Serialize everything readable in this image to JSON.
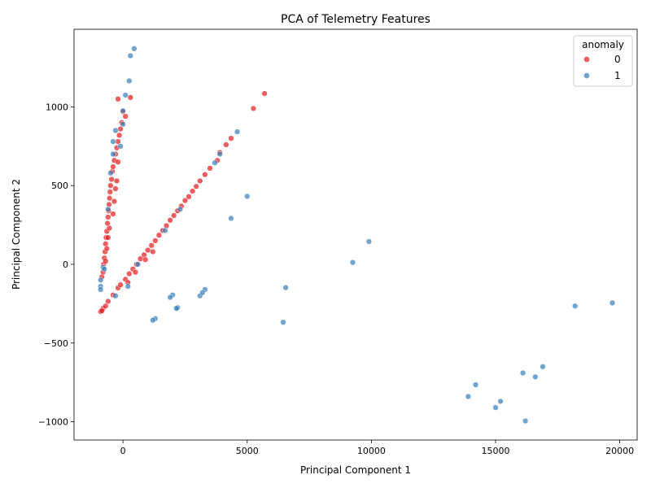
{
  "chart_data": {
    "type": "scatter",
    "title": "PCA of Telemetry Features",
    "x_label": "Principal Component 1",
    "y_label": "Principal Component 2",
    "legend_title": "anomaly",
    "legend_position": "upper right",
    "xlim": [
      -1970,
      20700
    ],
    "ylim": [
      -1116,
      1493
    ],
    "xticks": [
      0,
      5000,
      10000,
      15000,
      20000
    ],
    "yticks": [
      {
        "value": -1000,
        "label": "−1000"
      },
      {
        "value": -500,
        "label": "−500"
      },
      0,
      500,
      1000
    ],
    "series": [
      {
        "name": "0",
        "color": "#e41a1c",
        "x": [
          -800,
          -600,
          -400,
          -200,
          -100,
          100,
          250,
          400,
          550,
          700,
          850,
          1000,
          1150,
          1300,
          1450,
          1600,
          1750,
          1900,
          2050,
          2200,
          2350,
          2500,
          2650,
          2800,
          2950,
          3100,
          3300,
          3500,
          3800,
          3900,
          4150,
          4350,
          5250,
          5700,
          1200,
          900,
          500,
          200,
          -850,
          -800,
          -780,
          -750,
          -720,
          -700,
          -680,
          -650,
          -620,
          -600,
          -580,
          -560,
          -540,
          -520,
          -500,
          -460,
          -430,
          -400,
          -350,
          -300,
          -250,
          -200,
          -150,
          -100,
          -50,
          0,
          100,
          -200,
          300,
          -400,
          -350,
          -300,
          -250,
          -200,
          -700,
          -650,
          -600,
          -550,
          -900,
          -850,
          -700
        ],
        "values": [
          -280,
          -235,
          -195,
          -150,
          -130,
          -95,
          -60,
          -30,
          0,
          35,
          60,
          90,
          120,
          150,
          185,
          215,
          245,
          280,
          310,
          340,
          370,
          405,
          430,
          465,
          495,
          530,
          570,
          610,
          660,
          710,
          760,
          800,
          990,
          1085,
          80,
          30,
          -50,
          -115,
          -80,
          -50,
          0,
          40,
          80,
          130,
          170,
          210,
          260,
          300,
          340,
          380,
          420,
          460,
          500,
          540,
          590,
          620,
          660,
          700,
          740,
          780,
          820,
          860,
          900,
          970,
          940,
          1050,
          1060,
          320,
          400,
          480,
          530,
          650,
          20,
          100,
          170,
          230,
          -300,
          -295,
          -265
        ]
      },
      {
        "name": "1",
        "color": "#377eb8",
        "x": [
          15000,
          15200,
          16100,
          16600,
          16900,
          18200,
          19700,
          14200,
          13900,
          16200,
          9900,
          9250,
          6550,
          6450,
          4350,
          5000,
          4600,
          3300,
          3100,
          3200,
          2000,
          1900,
          2200,
          2150,
          1300,
          1200,
          450,
          300,
          250,
          100,
          0,
          0,
          -300,
          -100,
          -400,
          -500,
          -400,
          -600,
          -800,
          -900,
          -900,
          -900,
          -300,
          200,
          600,
          1700,
          2300,
          3700,
          3900,
          -750
        ],
        "values": [
          -910,
          -870,
          -690,
          -715,
          -650,
          -265,
          -245,
          -765,
          -840,
          -995,
          145,
          12,
          -148,
          -368,
          292,
          432,
          842,
          -160,
          -200,
          -180,
          -195,
          -210,
          -275,
          -280,
          -345,
          -355,
          1370,
          1325,
          1165,
          1075,
          975,
          890,
          850,
          750,
          780,
          580,
          700,
          350,
          -20,
          -140,
          -160,
          -100,
          -200,
          -140,
          0,
          215,
          350,
          645,
          700,
          -30
        ]
      }
    ]
  }
}
